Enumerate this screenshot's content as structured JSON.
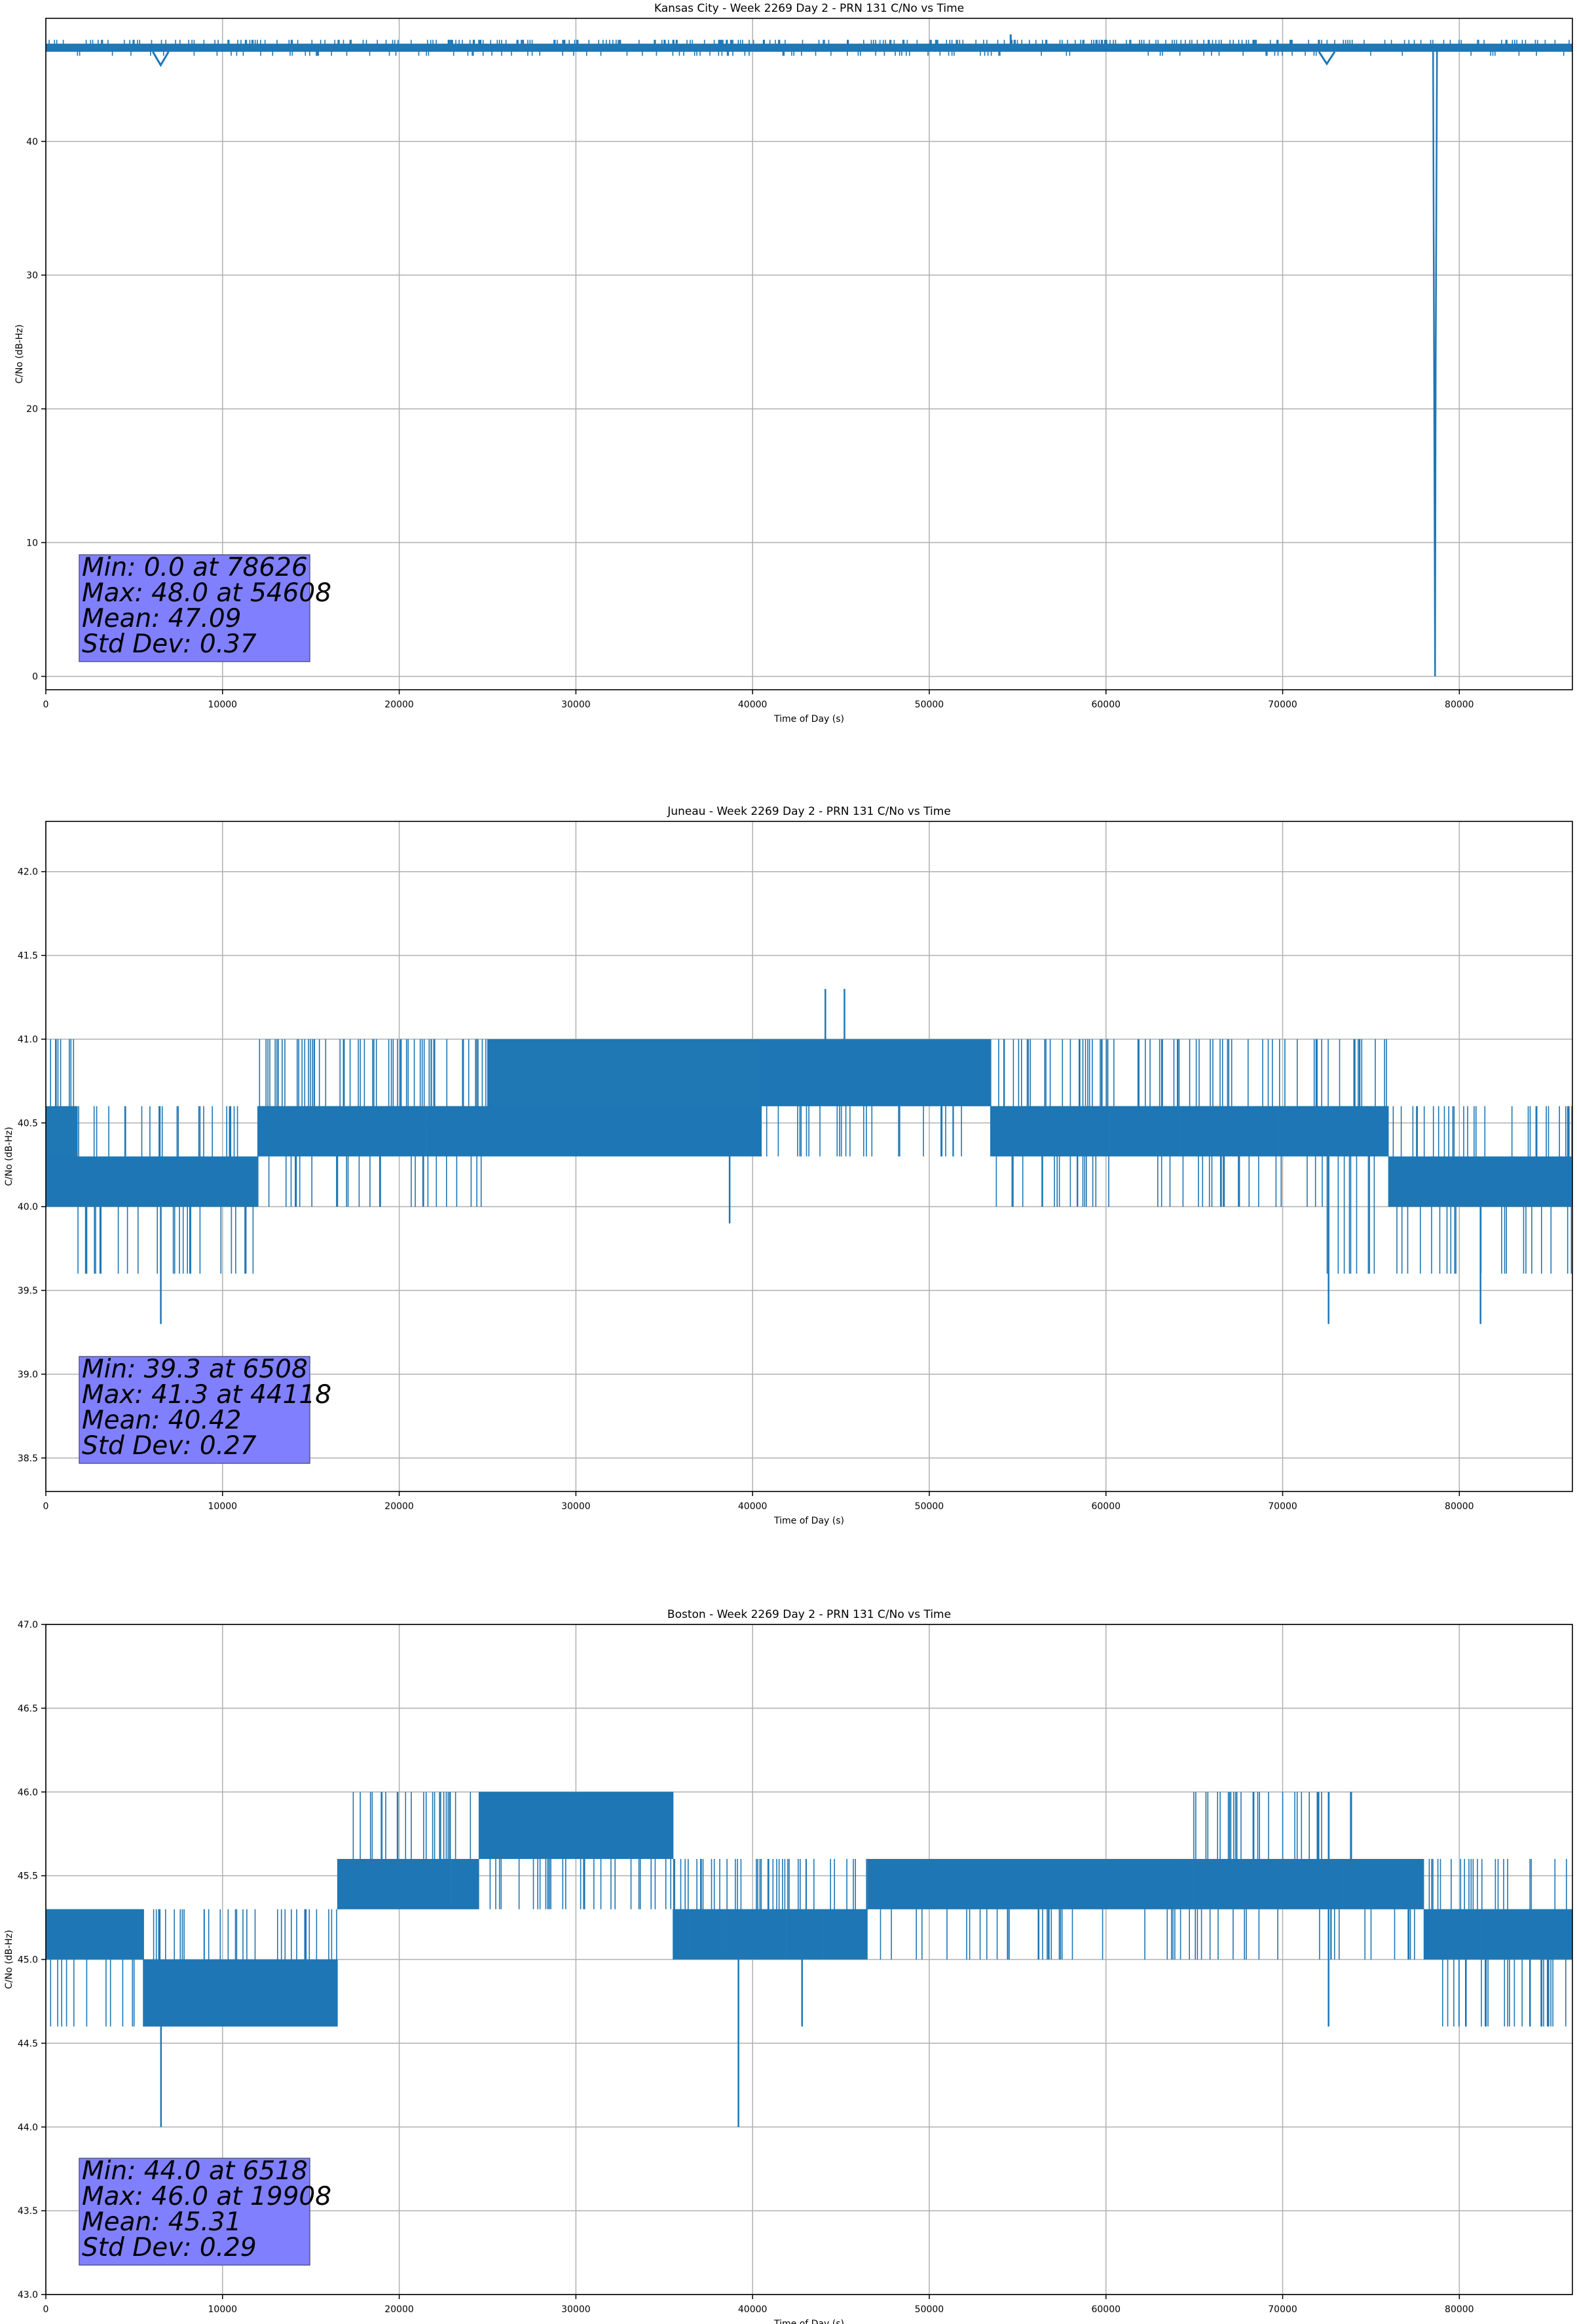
{
  "figure": {
    "line_color": "#1f77b4",
    "stats_box_color": "#8080ff",
    "grid": true
  },
  "chart_data": [
    {
      "type": "line",
      "title": "Kansas City - Week 2269 Day 2 - PRN 131 C/No vs Time",
      "xlabel": "Time of Day (s)",
      "ylabel": "C/No (dB-Hz)",
      "xlim": [
        0,
        86400
      ],
      "ylim": [
        -1.0,
        49.2
      ],
      "xticks": [
        "0",
        "10000",
        "20000",
        "30000",
        "40000",
        "50000",
        "60000",
        "70000",
        "80000"
      ],
      "yticks": [
        "0",
        "10",
        "20",
        "30",
        "40"
      ],
      "ytick_values": [
        0,
        10,
        20,
        30,
        40
      ],
      "band": {
        "low": 46.7,
        "high": 47.3,
        "low_spike": 46.4,
        "high_spike": 47.6
      },
      "dips": [
        {
          "x": 6500,
          "y": 45.7
        },
        {
          "x": 72500,
          "y": 45.8
        }
      ],
      "spikes_up": [
        {
          "x": 54608,
          "y": 48.0
        }
      ],
      "drop": {
        "x": 78626,
        "y": 0.0,
        "recovery_y": 23.8
      },
      "stats": [
        "Min: 0.0 at 78626",
        "Max: 48.0 at 54608",
        "Mean: 47.09",
        "Std Dev: 0.37"
      ]
    },
    {
      "type": "line",
      "title": "Juneau - Week 2269 Day 2 - PRN 131 C/No vs Time",
      "xlabel": "Time of Day (s)",
      "ylabel": "C/No (dB-Hz)",
      "xlim": [
        0,
        86400
      ],
      "ylim": [
        38.3,
        42.3
      ],
      "xticks": [
        "0",
        "10000",
        "20000",
        "30000",
        "40000",
        "50000",
        "60000",
        "70000",
        "80000"
      ],
      "yticks": [
        "38.5",
        "39.0",
        "39.5",
        "40.0",
        "40.5",
        "41.0",
        "41.5",
        "42.0"
      ],
      "ytick_values": [
        38.5,
        39.0,
        39.5,
        40.0,
        40.5,
        41.0,
        41.5,
        42.0
      ],
      "segments": [
        {
          "x0": 0,
          "x1": 1800,
          "levels": [
            40.0,
            40.3,
            40.6
          ],
          "spike_up": 41.0,
          "spike_down": 40.0
        },
        {
          "x0": 1800,
          "x1": 12000,
          "levels": [
            40.0,
            40.3
          ],
          "spike_up": 40.6,
          "spike_down": 39.6
        },
        {
          "x0": 12000,
          "x1": 25000,
          "levels": [
            40.3,
            40.6
          ],
          "spike_up": 41.0,
          "spike_down": 40.0
        },
        {
          "x0": 25000,
          "x1": 40500,
          "levels": [
            40.3,
            40.6,
            41.0
          ],
          "spike_up": 41.0,
          "spike_down": 40.3
        },
        {
          "x0": 40500,
          "x1": 53500,
          "levels": [
            40.6,
            41.0
          ],
          "spike_up": 41.0,
          "spike_down": 40.3
        },
        {
          "x0": 53500,
          "x1": 72500,
          "levels": [
            40.3,
            40.6
          ],
          "spike_up": 41.0,
          "spike_down": 40.0
        },
        {
          "x0": 72500,
          "x1": 76000,
          "levels": [
            40.3,
            40.6
          ],
          "spike_up": 41.0,
          "spike_down": 39.6
        },
        {
          "x0": 76000,
          "x1": 86400,
          "levels": [
            40.0,
            40.3
          ],
          "spike_up": 40.6,
          "spike_down": 39.6
        }
      ],
      "spikes_up": [
        {
          "x": 44118,
          "y": 41.3
        },
        {
          "x": 45200,
          "y": 41.3
        }
      ],
      "spikes_down": [
        {
          "x": 6508,
          "y": 39.3
        },
        {
          "x": 72600,
          "y": 39.3
        },
        {
          "x": 81200,
          "y": 39.3
        },
        {
          "x": 38700,
          "y": 39.9
        },
        {
          "x": 2300,
          "y": 39.6
        }
      ],
      "stats": [
        "Min: 39.3 at 6508",
        "Max: 41.3 at 44118",
        "Mean: 40.42",
        "Std Dev: 0.27"
      ]
    },
    {
      "type": "line",
      "title": "Boston - Week 2269 Day 2 - PRN 131 C/No vs Time",
      "xlabel": "Time of Day (s)",
      "ylabel": "C/No (dB-Hz)",
      "xlim": [
        0,
        86400
      ],
      "ylim": [
        43.0,
        47.0
      ],
      "xticks": [
        "0",
        "10000",
        "20000",
        "30000",
        "40000",
        "50000",
        "60000",
        "70000",
        "80000"
      ],
      "yticks": [
        "43.0",
        "43.5",
        "44.0",
        "44.5",
        "45.0",
        "45.5",
        "46.0",
        "46.5",
        "47.0"
      ],
      "ytick_values": [
        43.0,
        43.5,
        44.0,
        44.5,
        45.0,
        45.5,
        46.0,
        46.5,
        47.0
      ],
      "segments": [
        {
          "x0": 0,
          "x1": 5500,
          "levels": [
            45.0,
            45.3
          ],
          "spike_up": 45.3,
          "spike_down": 44.6
        },
        {
          "x0": 5500,
          "x1": 16500,
          "levels": [
            44.6,
            45.0
          ],
          "spike_up": 45.3,
          "spike_down": 44.6
        },
        {
          "x0": 16500,
          "x1": 24500,
          "levels": [
            45.3,
            45.6
          ],
          "spike_up": 46.0,
          "spike_down": 45.3
        },
        {
          "x0": 24500,
          "x1": 35500,
          "levels": [
            45.6,
            46.0
          ],
          "spike_up": 46.0,
          "spike_down": 45.3
        },
        {
          "x0": 35500,
          "x1": 46500,
          "levels": [
            45.0,
            45.3
          ],
          "spike_up": 45.6,
          "spike_down": 45.0
        },
        {
          "x0": 46500,
          "x1": 64000,
          "levels": [
            45.3,
            45.6
          ],
          "spike_up": 45.6,
          "spike_down": 45.0
        },
        {
          "x0": 64000,
          "x1": 74000,
          "levels": [
            45.3,
            45.6
          ],
          "spike_up": 46.0,
          "spike_down": 45.0
        },
        {
          "x0": 74000,
          "x1": 78000,
          "levels": [
            45.3,
            45.6
          ],
          "spike_up": 45.6,
          "spike_down": 45.0
        },
        {
          "x0": 78000,
          "x1": 86400,
          "levels": [
            45.0,
            45.3
          ],
          "spike_up": 45.6,
          "spike_down": 44.6
        }
      ],
      "spikes_up": [
        {
          "x": 19908,
          "y": 46.0
        }
      ],
      "spikes_down": [
        {
          "x": 6518,
          "y": 44.0
        },
        {
          "x": 39200,
          "y": 44.0
        },
        {
          "x": 72600,
          "y": 44.6
        },
        {
          "x": 42800,
          "y": 44.6
        },
        {
          "x": 84000,
          "y": 44.6
        },
        {
          "x": 85000,
          "y": 44.6
        }
      ],
      "stats": [
        "Min: 44.0 at 6518",
        "Max: 46.0 at 19908",
        "Mean: 45.31",
        "Std Dev: 0.29"
      ]
    }
  ]
}
